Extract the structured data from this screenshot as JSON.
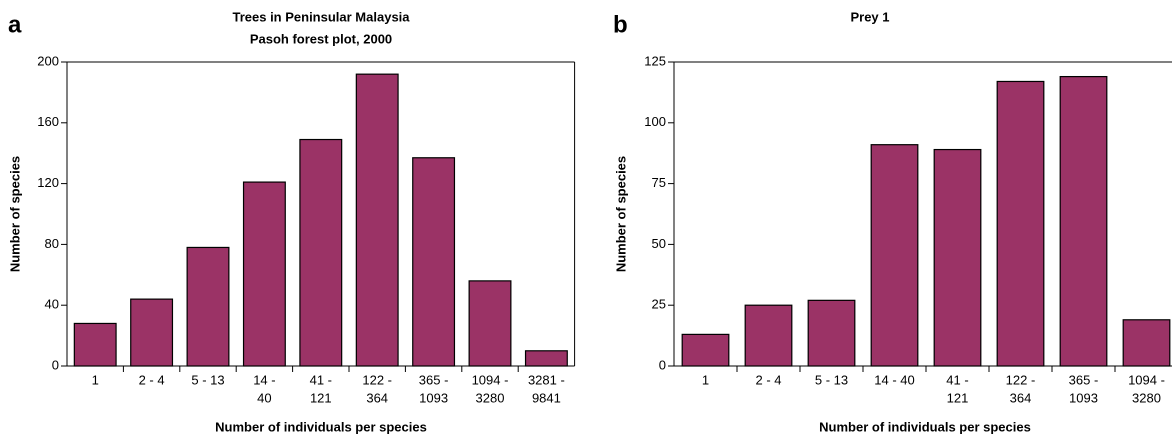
{
  "chart_data": [
    {
      "type": "bar",
      "panel": "a",
      "title": "Trees in Peninsular Malaysia",
      "subtitle": "Pasoh forest plot, 2000",
      "x_label": "Number of individuals per species",
      "y_label": "Number of species",
      "categories": [
        [
          "1"
        ],
        [
          "2 - 4"
        ],
        [
          "5 - 13"
        ],
        [
          "14 -",
          "40"
        ],
        [
          "41 -",
          "121"
        ],
        [
          "122 -",
          "364"
        ],
        [
          "365 -",
          "1093"
        ],
        [
          "1094 -",
          "3280"
        ],
        [
          "3281 -",
          "9841"
        ]
      ],
      "values": [
        28,
        44,
        78,
        121,
        149,
        192,
        137,
        56,
        10
      ],
      "color": "#9b3366",
      "ylim": [
        0,
        200
      ],
      "yticks": [
        0,
        40,
        80,
        120,
        160,
        200
      ]
    },
    {
      "type": "bar",
      "panel": "b",
      "title": "Prey 1",
      "x_label": "Number of individuals per species",
      "y_label": "Number of species",
      "categories": [
        [
          "1"
        ],
        [
          "2 - 4"
        ],
        [
          "5 - 13"
        ],
        [
          "14 - 40"
        ],
        [
          "41 -",
          "121"
        ],
        [
          "122 -",
          "364"
        ],
        [
          "365 -",
          "1093"
        ],
        [
          "1094 -",
          "3280"
        ]
      ],
      "values": [
        13,
        25,
        27,
        91,
        89,
        117,
        119,
        19
      ],
      "color": "#9b3366",
      "ylim": [
        0,
        125
      ],
      "yticks": [
        0,
        25,
        50,
        75,
        100,
        125
      ]
    }
  ]
}
